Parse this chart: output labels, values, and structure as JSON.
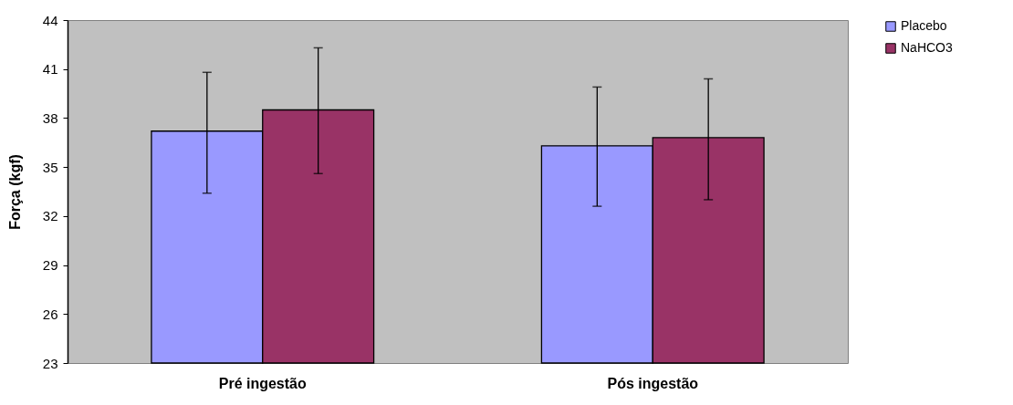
{
  "chart_data": {
    "type": "bar",
    "ylabel": "Força (kgf)",
    "categories": [
      "Pré ingestão",
      "Pós ingestão"
    ],
    "series": [
      {
        "name": "Placebo",
        "color": "#9999ff",
        "values": [
          37.2,
          36.3
        ],
        "errors": [
          [
            33.4,
            40.8
          ],
          [
            32.6,
            39.9
          ]
        ]
      },
      {
        "name": "NaHCO3",
        "color": "#993366",
        "values": [
          38.5,
          36.8
        ],
        "errors": [
          [
            34.6,
            42.3
          ],
          [
            33.0,
            40.4
          ]
        ]
      }
    ],
    "ylim": [
      23,
      44
    ],
    "yticks": [
      23,
      26,
      29,
      32,
      35,
      38,
      41,
      44
    ],
    "grid": false,
    "legend": "top right"
  }
}
